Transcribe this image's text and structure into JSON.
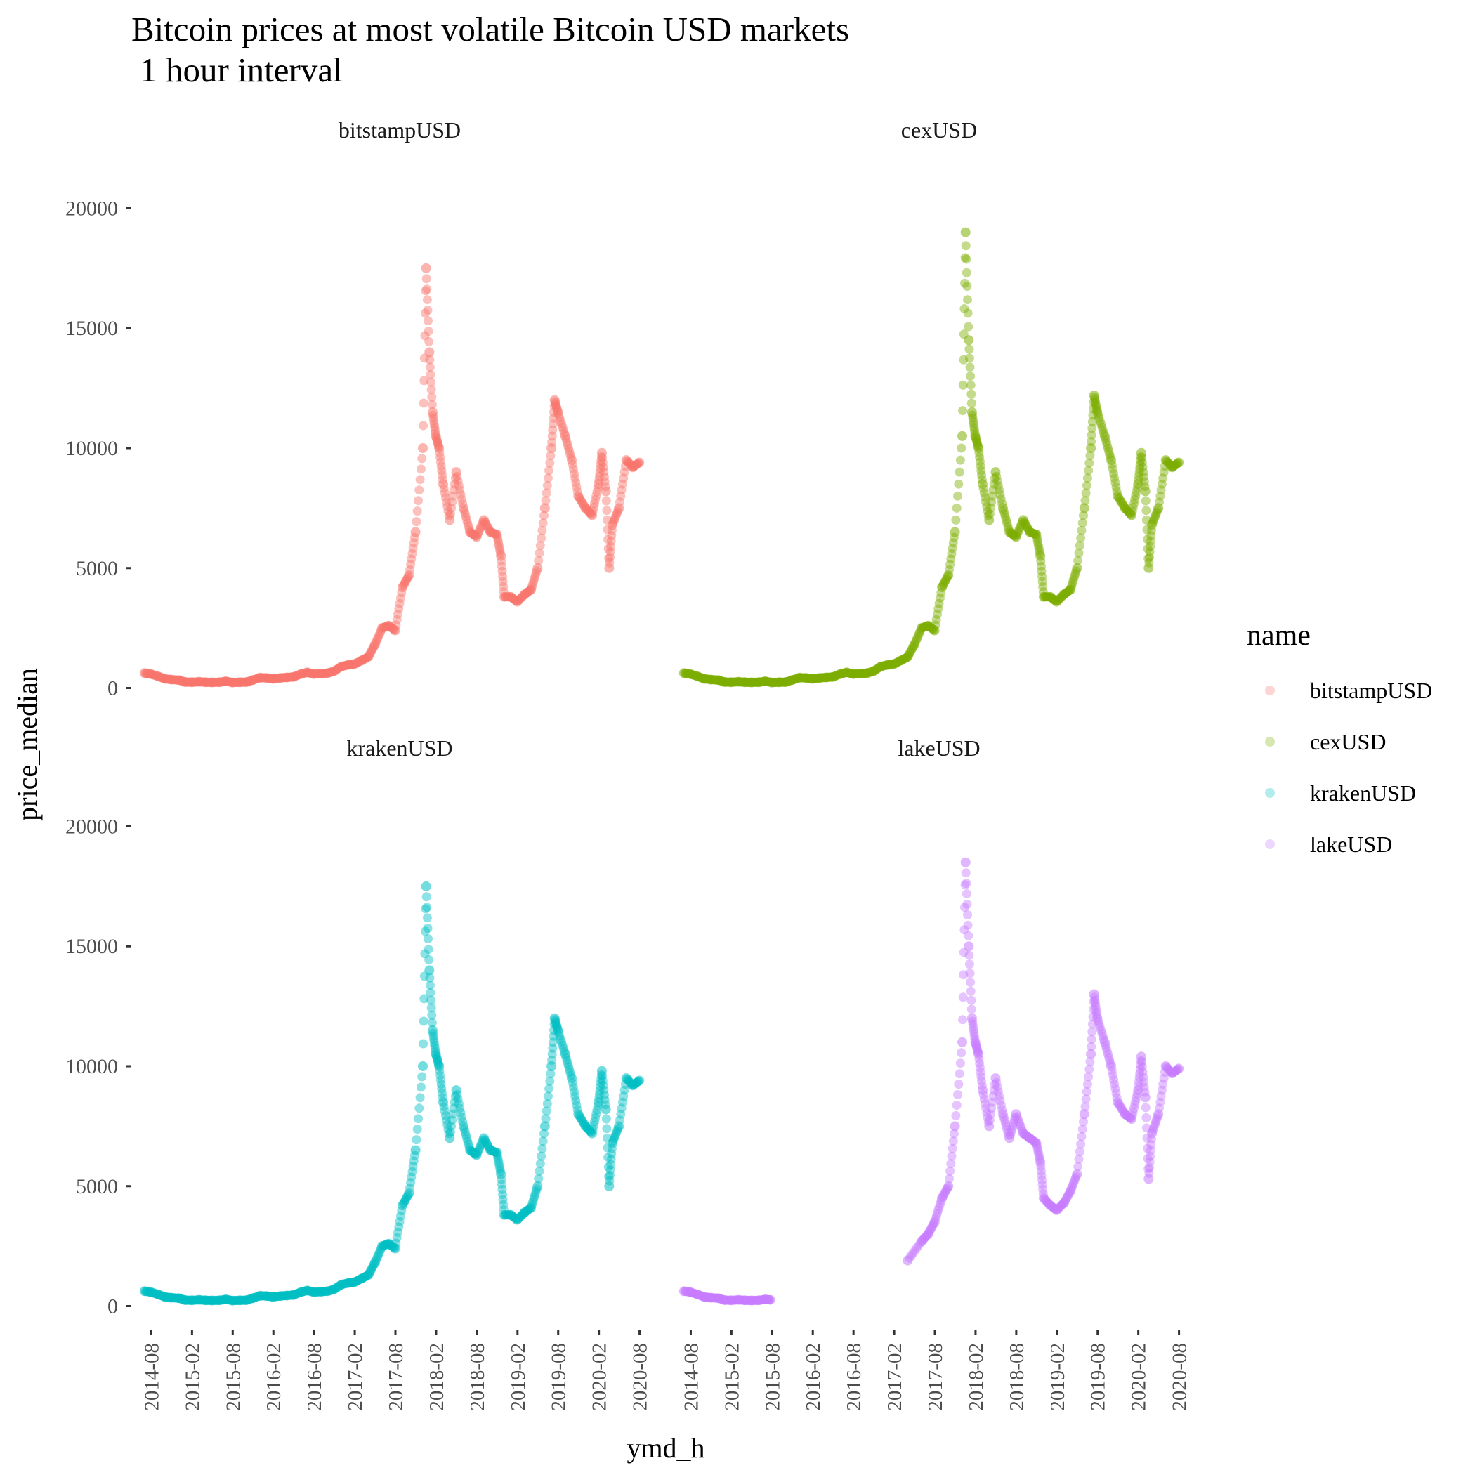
{
  "chart_data": {
    "type": "scatter",
    "title": "Bitcoin prices at most volatile Bitcoin USD markets",
    "subtitle": " 1 hour interval",
    "xlabel": "ymd_h",
    "ylabel": "price_median",
    "ylim": [
      -600,
      21800
    ],
    "yticks": [
      0,
      5000,
      10000,
      15000,
      20000
    ],
    "xticks": [
      "2014-08",
      "2015-02",
      "2015-08",
      "2016-02",
      "2016-08",
      "2017-02",
      "2017-08",
      "2018-02",
      "2018-08",
      "2019-02",
      "2019-08",
      "2020-02",
      "2020-08"
    ],
    "xlim": [
      2014.45,
      2020.82
    ],
    "legend": {
      "title": "name",
      "position": "right",
      "entries": [
        "bitstampUSD",
        "cexUSD",
        "krakenUSD",
        "lakeUSD"
      ]
    },
    "series": [
      {
        "name": "bitstampUSD",
        "color": "#F8766D",
        "x": [
          2014.5,
          2014.58,
          2014.67,
          2014.75,
          2014.83,
          2014.92,
          2015.0,
          2015.08,
          2015.17,
          2015.25,
          2015.33,
          2015.42,
          2015.5,
          2015.58,
          2015.67,
          2015.75,
          2015.83,
          2015.92,
          2016.0,
          2016.08,
          2016.17,
          2016.25,
          2016.33,
          2016.42,
          2016.5,
          2016.58,
          2016.67,
          2016.75,
          2016.83,
          2016.92,
          2017.0,
          2017.08,
          2017.17,
          2017.25,
          2017.33,
          2017.42,
          2017.5,
          2017.58,
          2017.67,
          2017.75,
          2017.83,
          2017.92,
          2017.96,
          2018.0,
          2018.04,
          2018.08,
          2018.12,
          2018.17,
          2018.25,
          2018.33,
          2018.42,
          2018.5,
          2018.58,
          2018.67,
          2018.75,
          2018.83,
          2018.88,
          2018.92,
          2019.0,
          2019.08,
          2019.17,
          2019.25,
          2019.33,
          2019.42,
          2019.5,
          2019.54,
          2019.58,
          2019.67,
          2019.75,
          2019.83,
          2019.92,
          2020.0,
          2020.08,
          2020.12,
          2020.17,
          2020.21,
          2020.25,
          2020.33,
          2020.42,
          2020.5,
          2020.58
        ],
        "y": [
          620,
          580,
          480,
          380,
          350,
          330,
          250,
          240,
          260,
          240,
          235,
          240,
          280,
          230,
          240,
          245,
          330,
          430,
          420,
          380,
          420,
          440,
          460,
          580,
          650,
          580,
          600,
          620,
          700,
          900,
          960,
          1000,
          1150,
          1300,
          1800,
          2500,
          2600,
          2400,
          4200,
          4700,
          6500,
          10000,
          17500,
          14000,
          11500,
          10500,
          10000,
          8500,
          7000,
          9000,
          7500,
          6500,
          6300,
          7000,
          6500,
          6400,
          5500,
          3800,
          3800,
          3600,
          3900,
          4100,
          5000,
          7500,
          10000,
          12000,
          11500,
          10500,
          9500,
          8000,
          7500,
          7200,
          8500,
          9800,
          8200,
          5000,
          6800,
          7500,
          9500,
          9200,
          9400
        ]
      },
      {
        "name": "cexUSD",
        "color": "#7CAE00",
        "x": [
          2014.5,
          2014.58,
          2014.67,
          2014.75,
          2014.83,
          2014.92,
          2015.0,
          2015.08,
          2015.17,
          2015.25,
          2015.33,
          2015.42,
          2015.5,
          2015.58,
          2015.67,
          2015.75,
          2015.83,
          2015.92,
          2016.0,
          2016.08,
          2016.17,
          2016.25,
          2016.33,
          2016.42,
          2016.5,
          2016.58,
          2016.67,
          2016.75,
          2016.83,
          2016.92,
          2017.0,
          2017.08,
          2017.17,
          2017.25,
          2017.33,
          2017.42,
          2017.5,
          2017.58,
          2017.67,
          2017.75,
          2017.83,
          2017.92,
          2017.96,
          2018.0,
          2018.04,
          2018.08,
          2018.12,
          2018.17,
          2018.25,
          2018.33,
          2018.42,
          2018.5,
          2018.58,
          2018.67,
          2018.75,
          2018.83,
          2018.88,
          2018.92,
          2019.0,
          2019.08,
          2019.17,
          2019.25,
          2019.33,
          2019.42,
          2019.5,
          2019.54,
          2019.58,
          2019.67,
          2019.75,
          2019.83,
          2019.92,
          2020.0,
          2020.08,
          2020.12,
          2020.17,
          2020.21,
          2020.25,
          2020.33,
          2020.42,
          2020.5,
          2020.58
        ],
        "y": [
          620,
          580,
          480,
          380,
          350,
          330,
          250,
          240,
          260,
          240,
          235,
          240,
          280,
          230,
          240,
          245,
          330,
          430,
          420,
          380,
          420,
          440,
          460,
          580,
          650,
          580,
          600,
          620,
          700,
          900,
          960,
          1000,
          1150,
          1300,
          1800,
          2500,
          2600,
          2400,
          4200,
          4700,
          6500,
          10500,
          19000,
          14500,
          11500,
          10500,
          10000,
          8500,
          7000,
          9000,
          7500,
          6500,
          6300,
          7000,
          6500,
          6400,
          5500,
          3800,
          3800,
          3600,
          3900,
          4100,
          5000,
          7500,
          10000,
          12200,
          11500,
          10500,
          9500,
          8000,
          7500,
          7200,
          8500,
          9800,
          8200,
          5000,
          6800,
          7500,
          9500,
          9200,
          9400
        ]
      },
      {
        "name": "krakenUSD",
        "color": "#00BFC4",
        "x": [
          2014.5,
          2014.58,
          2014.67,
          2014.75,
          2014.83,
          2014.92,
          2015.0,
          2015.08,
          2015.17,
          2015.25,
          2015.33,
          2015.42,
          2015.5,
          2015.58,
          2015.67,
          2015.75,
          2015.83,
          2015.92,
          2016.0,
          2016.08,
          2016.17,
          2016.25,
          2016.33,
          2016.42,
          2016.5,
          2016.58,
          2016.67,
          2016.75,
          2016.83,
          2016.92,
          2017.0,
          2017.08,
          2017.17,
          2017.25,
          2017.33,
          2017.42,
          2017.5,
          2017.58,
          2017.67,
          2017.75,
          2017.83,
          2017.92,
          2017.96,
          2018.0,
          2018.04,
          2018.08,
          2018.12,
          2018.17,
          2018.25,
          2018.33,
          2018.42,
          2018.5,
          2018.58,
          2018.67,
          2018.75,
          2018.83,
          2018.88,
          2018.92,
          2019.0,
          2019.08,
          2019.17,
          2019.25,
          2019.33,
          2019.42,
          2019.5,
          2019.54,
          2019.58,
          2019.67,
          2019.75,
          2019.83,
          2019.92,
          2020.0,
          2020.08,
          2020.12,
          2020.17,
          2020.21,
          2020.25,
          2020.33,
          2020.42,
          2020.5,
          2020.58
        ],
        "y": [
          620,
          580,
          480,
          380,
          350,
          330,
          250,
          240,
          260,
          240,
          235,
          240,
          280,
          230,
          240,
          245,
          330,
          430,
          420,
          380,
          420,
          440,
          460,
          580,
          650,
          580,
          600,
          620,
          700,
          900,
          960,
          1000,
          1150,
          1300,
          1800,
          2500,
          2600,
          2400,
          4200,
          4700,
          6500,
          10000,
          17500,
          14000,
          11500,
          10500,
          10000,
          8500,
          7000,
          9000,
          7500,
          6500,
          6300,
          7000,
          6500,
          6400,
          5500,
          3800,
          3800,
          3600,
          3900,
          4100,
          5000,
          7500,
          10000,
          12000,
          11500,
          10500,
          9500,
          8000,
          7500,
          7200,
          8500,
          9800,
          8200,
          5000,
          6800,
          7500,
          9500,
          9200,
          9400
        ]
      },
      {
        "name": "lakeUSD",
        "color": "#C77CFF",
        "x": [
          2014.5,
          2014.58,
          2014.67,
          2014.75,
          2014.83,
          2014.92,
          2015.0,
          2015.08,
          2015.17,
          2015.25,
          2015.33,
          2015.42,
          2015.5,
          2015.56,
          2017.25,
          2017.42,
          2017.5,
          2017.58,
          2017.67,
          2017.75,
          2017.83,
          2017.92,
          2017.96,
          2018.0,
          2018.04,
          2018.08,
          2018.12,
          2018.17,
          2018.25,
          2018.33,
          2018.42,
          2018.5,
          2018.58,
          2018.67,
          2018.75,
          2018.83,
          2018.88,
          2018.92,
          2019.0,
          2019.08,
          2019.17,
          2019.25,
          2019.33,
          2019.42,
          2019.5,
          2019.54,
          2019.58,
          2019.67,
          2019.75,
          2019.83,
          2019.92,
          2020.0,
          2020.08,
          2020.12,
          2020.17,
          2020.21,
          2020.25,
          2020.33,
          2020.42,
          2020.5,
          2020.58
        ],
        "y": [
          620,
          580,
          480,
          380,
          350,
          330,
          250,
          240,
          260,
          240,
          235,
          240,
          280,
          260,
          1900,
          2700,
          3000,
          3500,
          4500,
          5000,
          7500,
          11000,
          18500,
          15000,
          12000,
          11000,
          10500,
          9000,
          7500,
          9500,
          8000,
          7000,
          8000,
          7200,
          7000,
          6800,
          6000,
          4500,
          4200,
          4000,
          4300,
          4800,
          5500,
          8000,
          10500,
          13000,
          12000,
          11000,
          10000,
          8500,
          8000,
          7800,
          9000,
          10400,
          8700,
          5300,
          7200,
          8000,
          10000,
          9700,
          9900
        ]
      }
    ]
  }
}
